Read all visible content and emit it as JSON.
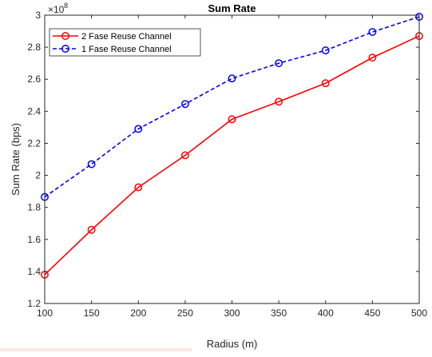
{
  "chart_data": {
    "type": "line",
    "title": "Sum Rate",
    "xlabel": "Radius (m)",
    "ylabel": "Sum Rate (bps)",
    "y_exponent_base": "×10",
    "y_exponent_power": "8",
    "x": [
      100,
      150,
      200,
      250,
      300,
      350,
      400,
      450,
      500
    ],
    "xlim": [
      100,
      500
    ],
    "ylim": [
      1.2,
      3.0
    ],
    "x_ticks": [
      100,
      150,
      200,
      250,
      300,
      350,
      400,
      450,
      500
    ],
    "x_tick_labels": [
      "100",
      "150",
      "200",
      "250",
      "300",
      "350",
      "400",
      "450",
      "500"
    ],
    "y_ticks": [
      1.2,
      1.4,
      1.6,
      1.8,
      2.0,
      2.2,
      2.4,
      2.6,
      2.8,
      3.0
    ],
    "y_tick_labels": [
      "1.2",
      "1.4",
      "1.6",
      "1.8",
      "2",
      "2.2",
      "2.4",
      "2.6",
      "2.8",
      "3"
    ],
    "grid": false,
    "legend_position": "top-left",
    "series": [
      {
        "name": "2 Fase Reuse Channel",
        "color": "#ff0000",
        "line_style": "solid",
        "marker": "circle",
        "values": [
          1.38,
          1.66,
          1.925,
          2.125,
          2.35,
          2.46,
          2.575,
          2.735,
          2.87
        ]
      },
      {
        "name": "1 Fase Reuse Channel",
        "color": "#0000ff",
        "line_style": "dashed",
        "marker": "circle",
        "values": [
          1.865,
          2.07,
          2.29,
          2.445,
          2.605,
          2.7,
          2.78,
          2.895,
          2.99
        ]
      }
    ]
  }
}
